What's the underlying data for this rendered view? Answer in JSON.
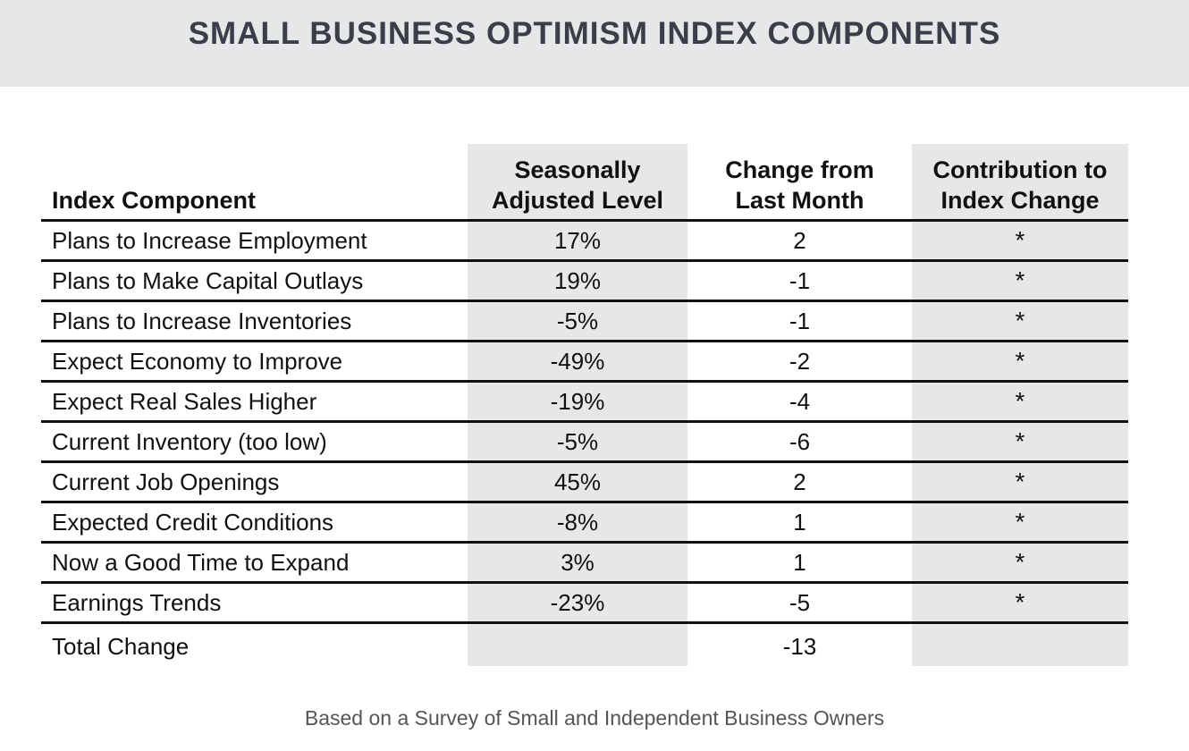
{
  "title": "SMALL BUSINESS OPTIMISM INDEX COMPONENTS",
  "table": {
    "headers": {
      "component": "Index Component",
      "level": [
        "Seasonally",
        "Adjusted Level"
      ],
      "change": [
        "Change from",
        "Last Month"
      ],
      "contribution": [
        "Contribution to",
        "Index Change"
      ]
    },
    "rows": [
      {
        "component": "Plans to Increase Employment",
        "level": "17%",
        "change": "2",
        "contribution": "*"
      },
      {
        "component": "Plans to Make Capital Outlays",
        "level": "19%",
        "change": "-1",
        "contribution": "*"
      },
      {
        "component": "Plans to Increase Inventories",
        "level": "-5%",
        "change": "-1",
        "contribution": "*"
      },
      {
        "component": "Expect Economy to Improve",
        "level": "-49%",
        "change": "-2",
        "contribution": "*"
      },
      {
        "component": "Expect Real Sales Higher",
        "level": "-19%",
        "change": "-4",
        "contribution": "*"
      },
      {
        "component": "Current Inventory (too low)",
        "level": "-5%",
        "change": "-6",
        "contribution": "*"
      },
      {
        "component": "Current Job Openings",
        "level": "45%",
        "change": "2",
        "contribution": "*"
      },
      {
        "component": "Expected Credit Conditions",
        "level": "-8%",
        "change": "1",
        "contribution": "*"
      },
      {
        "component": "Now a Good Time to Expand",
        "level": "3%",
        "change": "1",
        "contribution": "*"
      },
      {
        "component": "Earnings Trends",
        "level": "-23%",
        "change": "-5",
        "contribution": "*"
      }
    ],
    "total": {
      "label": "Total Change",
      "level": "",
      "change": "-13",
      "contribution": ""
    }
  },
  "footnote": "Based on a Survey of Small and Independent Business Owners",
  "colors": {
    "title_band": "#e6e7e8",
    "column_shade": "#e6e7e8",
    "title_text": "#3b3e48"
  }
}
